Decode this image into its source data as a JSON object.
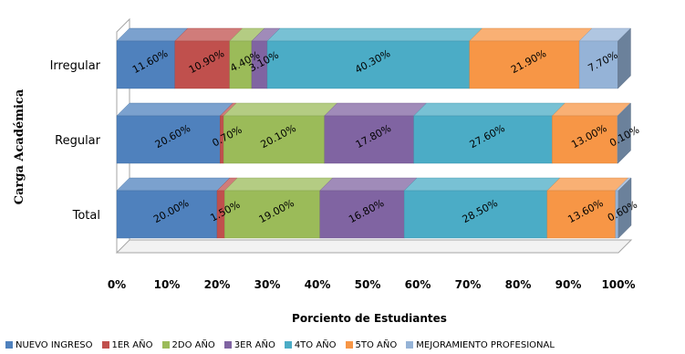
{
  "chart_data": {
    "type": "bar",
    "orientation": "horizontal",
    "stacked": "percent",
    "style": "3d",
    "ylabel": "Carga  Académica",
    "xlabel": "Porciento de Estudiantes",
    "categories": [
      "Irregular",
      "Regular",
      "Total"
    ],
    "xlim": [
      0,
      100
    ],
    "x_ticks": [
      "0%",
      "10%",
      "20%",
      "30%",
      "40%",
      "50%",
      "60%",
      "70%",
      "80%",
      "90%",
      "100%"
    ],
    "legend_position": "bottom",
    "series": [
      {
        "name": "NUEVO INGRESO",
        "color": "#4F81BD",
        "values": [
          11.6,
          20.6,
          20.0
        ],
        "labels": [
          "11.60%",
          "20.60%",
          "20.00%"
        ]
      },
      {
        "name": "1ER AÑO",
        "color": "#C0504D",
        "values": [
          10.9,
          0.7,
          1.5
        ],
        "labels": [
          "10.90%",
          "0.70%",
          "1.50%"
        ]
      },
      {
        "name": "2DO AÑO",
        "color": "#9BBB59",
        "values": [
          4.4,
          20.1,
          19.0
        ],
        "labels": [
          "4.40%",
          "20.10%",
          "19.00%"
        ]
      },
      {
        "name": "3ER AÑO",
        "color": "#8064A2",
        "values": [
          3.1,
          17.8,
          16.8
        ],
        "labels": [
          "3.10%",
          "17.80%",
          "16.80%"
        ]
      },
      {
        "name": "4TO AÑO",
        "color": "#4BACC6",
        "values": [
          40.3,
          27.6,
          28.5
        ],
        "labels": [
          "40.30%",
          "27.60%",
          "28.50%"
        ]
      },
      {
        "name": "5TO AÑO",
        "color": "#F79646",
        "values": [
          21.9,
          13.0,
          13.6
        ],
        "labels": [
          "21.90%",
          "13.00%",
          "13.60%"
        ]
      },
      {
        "name": "MEJORAMIENTO PROFESIONAL",
        "color": "#95B3D7",
        "values": [
          7.7,
          0.1,
          0.6
        ],
        "labels": [
          "7.70%",
          "0.10%",
          "0.60%"
        ]
      }
    ]
  }
}
